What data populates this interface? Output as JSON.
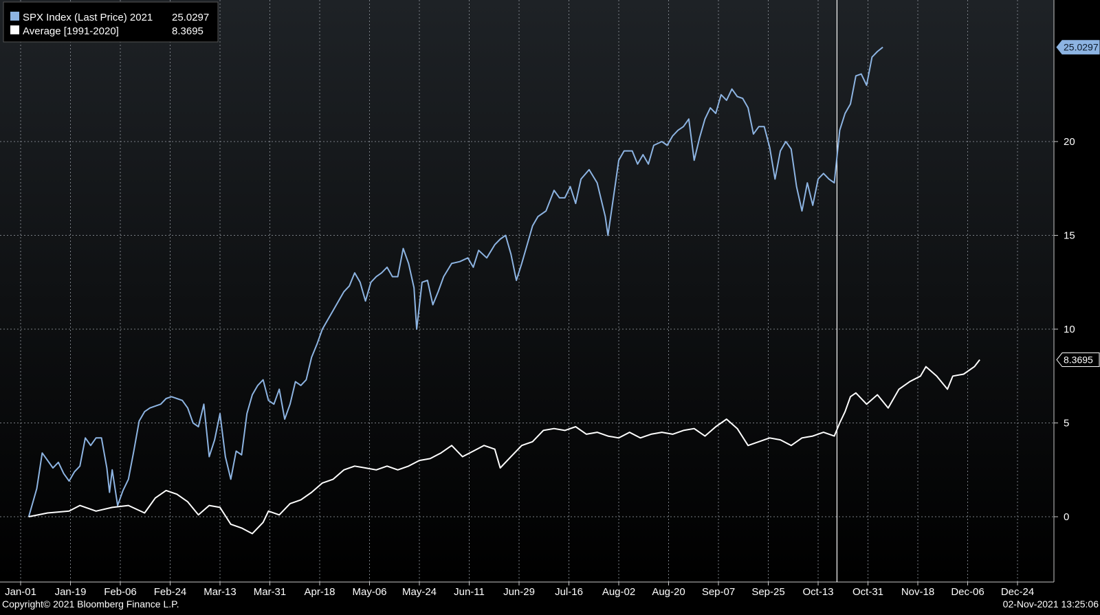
{
  "chart_data": {
    "type": "line",
    "title": "",
    "xlabel": "",
    "ylabel": "",
    "x_tick_labels": [
      "Jan-01",
      "Jan-19",
      "Feb-06",
      "Feb-24",
      "Mar-13",
      "Mar-31",
      "Apr-18",
      "May-06",
      "May-24",
      "Jun-11",
      "Jun-29",
      "Jul-16",
      "Aug-02",
      "Aug-20",
      "Sep-07",
      "Sep-25",
      "Oct-13",
      "Oct-31",
      "Nov-18",
      "Dec-06",
      "Dec-24"
    ],
    "y_ticks": [
      0,
      5,
      10,
      15,
      20
    ],
    "ylim": [
      -3.5,
      27.5
    ],
    "xlim": [
      0,
      370
    ],
    "grid": true,
    "legend_position": "top-left",
    "marker_x": 303,
    "series": [
      {
        "name": "SPX Index (Last Price) 2021",
        "value_label": "25.0297",
        "color": "#8db4e2",
        "points": [
          [
            3,
            0
          ],
          [
            6,
            1.5
          ],
          [
            8,
            3.4
          ],
          [
            10,
            3
          ],
          [
            12,
            2.6
          ],
          [
            14,
            2.9
          ],
          [
            16,
            2.3
          ],
          [
            18,
            1.9
          ],
          [
            20,
            2.4
          ],
          [
            22,
            2.7
          ],
          [
            24,
            4.2
          ],
          [
            26,
            3.8
          ],
          [
            28,
            4.2
          ],
          [
            30,
            4.2
          ],
          [
            32,
            2.6
          ],
          [
            33,
            1.3
          ],
          [
            34,
            2.5
          ],
          [
            36,
            0.6
          ],
          [
            38,
            1.4
          ],
          [
            40,
            2.0
          ],
          [
            42,
            3.5
          ],
          [
            44,
            5.1
          ],
          [
            46,
            5.6
          ],
          [
            48,
            5.8
          ],
          [
            50,
            5.9
          ],
          [
            52,
            6.0
          ],
          [
            54,
            6.3
          ],
          [
            56,
            6.4
          ],
          [
            58,
            6.3
          ],
          [
            60,
            6.2
          ],
          [
            62,
            5.8
          ],
          [
            64,
            5.0
          ],
          [
            66,
            4.8
          ],
          [
            68,
            6.0
          ],
          [
            70,
            3.2
          ],
          [
            72,
            4.1
          ],
          [
            74,
            5.5
          ],
          [
            76,
            3.2
          ],
          [
            78,
            2.0
          ],
          [
            80,
            3.5
          ],
          [
            82,
            3.3
          ],
          [
            84,
            5.5
          ],
          [
            86,
            6.5
          ],
          [
            88,
            7.0
          ],
          [
            90,
            7.3
          ],
          [
            92,
            6.2
          ],
          [
            94,
            6.0
          ],
          [
            96,
            6.8
          ],
          [
            98,
            5.2
          ],
          [
            100,
            6.0
          ],
          [
            102,
            7.2
          ],
          [
            104,
            7.0
          ],
          [
            106,
            7.3
          ],
          [
            108,
            8.5
          ],
          [
            110,
            9.2
          ],
          [
            112,
            10.0
          ],
          [
            114,
            10.5
          ],
          [
            116,
            11.0
          ],
          [
            118,
            11.5
          ],
          [
            120,
            12.0
          ],
          [
            122,
            12.3
          ],
          [
            124,
            13.0
          ],
          [
            126,
            12.5
          ],
          [
            128,
            11.5
          ],
          [
            130,
            12.5
          ],
          [
            132,
            12.8
          ],
          [
            134,
            13.0
          ],
          [
            136,
            13.3
          ],
          [
            138,
            12.8
          ],
          [
            140,
            12.8
          ],
          [
            142,
            14.3
          ],
          [
            144,
            13.5
          ],
          [
            146,
            12.2
          ],
          [
            147,
            10.0
          ],
          [
            149,
            12.5
          ],
          [
            151,
            12.6
          ],
          [
            153,
            11.3
          ],
          [
            155,
            12.0
          ],
          [
            157,
            12.8
          ],
          [
            160,
            13.5
          ],
          [
            163,
            13.6
          ],
          [
            166,
            13.8
          ],
          [
            168,
            13.3
          ],
          [
            170,
            14.2
          ],
          [
            173,
            13.8
          ],
          [
            176,
            14.5
          ],
          [
            178,
            14.8
          ],
          [
            180,
            15.0
          ],
          [
            182,
            14.0
          ],
          [
            184,
            12.6
          ],
          [
            186,
            13.5
          ],
          [
            188,
            14.5
          ],
          [
            190,
            15.5
          ],
          [
            192,
            16.0
          ],
          [
            195,
            16.3
          ],
          [
            198,
            17.4
          ],
          [
            200,
            17.0
          ],
          [
            202,
            17.0
          ],
          [
            204,
            17.6
          ],
          [
            206,
            16.7
          ],
          [
            208,
            18.0
          ],
          [
            211,
            18.5
          ],
          [
            214,
            17.8
          ],
          [
            217,
            16.0
          ],
          [
            218,
            15.0
          ],
          [
            220,
            17.0
          ],
          [
            222,
            19.0
          ],
          [
            224,
            19.5
          ],
          [
            227,
            19.5
          ],
          [
            229,
            18.8
          ],
          [
            231,
            19.3
          ],
          [
            233,
            18.8
          ],
          [
            235,
            19.8
          ],
          [
            238,
            20.0
          ],
          [
            240,
            19.8
          ],
          [
            242,
            20.3
          ],
          [
            244,
            20.6
          ],
          [
            246,
            20.8
          ],
          [
            248,
            21.2
          ],
          [
            250,
            19.0
          ],
          [
            252,
            20.2
          ],
          [
            254,
            21.2
          ],
          [
            256,
            21.8
          ],
          [
            258,
            21.5
          ],
          [
            260,
            22.5
          ],
          [
            262,
            22.2
          ],
          [
            264,
            22.8
          ],
          [
            266,
            22.4
          ],
          [
            268,
            22.3
          ],
          [
            270,
            21.8
          ],
          [
            272,
            20.4
          ],
          [
            274,
            20.8
          ],
          [
            276,
            20.8
          ],
          [
            278,
            19.7
          ],
          [
            280,
            18.0
          ],
          [
            282,
            19.5
          ],
          [
            284,
            20.0
          ],
          [
            286,
            19.6
          ],
          [
            288,
            17.6
          ],
          [
            290,
            16.3
          ],
          [
            292,
            17.8
          ],
          [
            294,
            16.6
          ],
          [
            296,
            18.0
          ],
          [
            298,
            18.3
          ],
          [
            300,
            18.0
          ],
          [
            302,
            17.8
          ],
          [
            304,
            20.6
          ],
          [
            306,
            21.5
          ],
          [
            308,
            22.0
          ],
          [
            310,
            23.5
          ],
          [
            312,
            23.6
          ],
          [
            314,
            23.0
          ],
          [
            316,
            24.5
          ],
          [
            318,
            24.8
          ],
          [
            320,
            25.0297
          ]
        ]
      },
      {
        "name": "Average [1991-2020]",
        "value_label": "8.3695",
        "color": "#ffffff",
        "points": [
          [
            3,
            0
          ],
          [
            10,
            0.2
          ],
          [
            18,
            0.3
          ],
          [
            22,
            0.6
          ],
          [
            28,
            0.3
          ],
          [
            34,
            0.5
          ],
          [
            40,
            0.6
          ],
          [
            46,
            0.2
          ],
          [
            50,
            1.0
          ],
          [
            54,
            1.4
          ],
          [
            58,
            1.2
          ],
          [
            62,
            0.8
          ],
          [
            66,
            0.1
          ],
          [
            70,
            0.6
          ],
          [
            74,
            0.5
          ],
          [
            78,
            -0.4
          ],
          [
            82,
            -0.6
          ],
          [
            86,
            -0.9
          ],
          [
            90,
            -0.3
          ],
          [
            92,
            0.3
          ],
          [
            96,
            0.1
          ],
          [
            100,
            0.7
          ],
          [
            104,
            0.9
          ],
          [
            108,
            1.3
          ],
          [
            112,
            1.8
          ],
          [
            116,
            2.0
          ],
          [
            120,
            2.5
          ],
          [
            124,
            2.7
          ],
          [
            128,
            2.6
          ],
          [
            132,
            2.5
          ],
          [
            136,
            2.7
          ],
          [
            140,
            2.5
          ],
          [
            144,
            2.7
          ],
          [
            148,
            3.0
          ],
          [
            152,
            3.1
          ],
          [
            156,
            3.4
          ],
          [
            160,
            3.8
          ],
          [
            164,
            3.2
          ],
          [
            168,
            3.5
          ],
          [
            172,
            3.8
          ],
          [
            176,
            3.6
          ],
          [
            178,
            2.6
          ],
          [
            182,
            3.2
          ],
          [
            186,
            3.8
          ],
          [
            190,
            4.0
          ],
          [
            194,
            4.6
          ],
          [
            198,
            4.7
          ],
          [
            202,
            4.6
          ],
          [
            206,
            4.8
          ],
          [
            210,
            4.4
          ],
          [
            214,
            4.5
          ],
          [
            218,
            4.3
          ],
          [
            222,
            4.2
          ],
          [
            226,
            4.5
          ],
          [
            230,
            4.2
          ],
          [
            234,
            4.4
          ],
          [
            238,
            4.5
          ],
          [
            242,
            4.4
          ],
          [
            246,
            4.6
          ],
          [
            250,
            4.7
          ],
          [
            254,
            4.3
          ],
          [
            258,
            4.8
          ],
          [
            262,
            5.2
          ],
          [
            266,
            4.7
          ],
          [
            270,
            3.8
          ],
          [
            274,
            4.0
          ],
          [
            278,
            4.2
          ],
          [
            282,
            4.1
          ],
          [
            286,
            3.8
          ],
          [
            290,
            4.2
          ],
          [
            294,
            4.3
          ],
          [
            298,
            4.5
          ],
          [
            302,
            4.3
          ],
          [
            304,
            5.0
          ],
          [
            306,
            5.6
          ],
          [
            308,
            6.4
          ],
          [
            310,
            6.6
          ],
          [
            314,
            6.0
          ],
          [
            318,
            6.5
          ],
          [
            322,
            5.8
          ],
          [
            326,
            6.8
          ],
          [
            330,
            7.2
          ],
          [
            334,
            7.5
          ],
          [
            336,
            8.0
          ],
          [
            340,
            7.5
          ],
          [
            344,
            6.8
          ],
          [
            346,
            7.5
          ],
          [
            350,
            7.6
          ],
          [
            354,
            8.0
          ],
          [
            356,
            8.3695
          ]
        ]
      }
    ]
  },
  "footer": {
    "copyright": "Copyright© 2021 Bloomberg Finance L.P.",
    "timestamp": "02-Nov-2021 13:25:06"
  },
  "colors": {
    "background_top": "#1c2024",
    "background_bottom": "#000000",
    "grid": "#7a7f86",
    "axis": "#c8c8c8"
  }
}
